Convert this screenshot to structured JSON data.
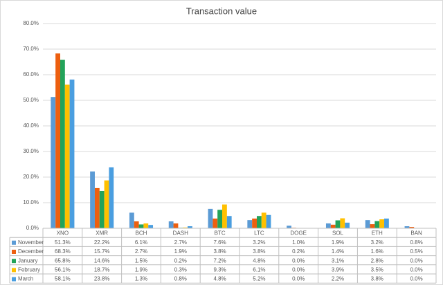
{
  "chart_data": {
    "type": "bar",
    "title": "Transaction value",
    "categories": [
      "XNO",
      "XMR",
      "BCH",
      "DASH",
      "BTC",
      "LTC",
      "DOGE",
      "SOL",
      "ETH",
      "BAN"
    ],
    "ylim": [
      0,
      80
    ],
    "yticks": [
      {
        "value": 0,
        "label": "0.0%"
      },
      {
        "value": 10,
        "label": "10.0%"
      },
      {
        "value": 20,
        "label": "20.0%"
      },
      {
        "value": 30,
        "label": "30.0%"
      },
      {
        "value": 40,
        "label": "40.0%"
      },
      {
        "value": 50,
        "label": "50.0%"
      },
      {
        "value": 60,
        "label": "60.0%"
      },
      {
        "value": 70,
        "label": "70.0%"
      },
      {
        "value": 80,
        "label": "80.0%"
      }
    ],
    "grid": true,
    "series": [
      {
        "name": "November",
        "color": "#5b9bd5",
        "values": [
          51.3,
          22.2,
          6.1,
          2.7,
          7.6,
          3.2,
          1.0,
          1.9,
          3.2,
          0.8
        ],
        "value_labels": [
          "51.3%",
          "22.2%",
          "6.1%",
          "2.7%",
          "7.6%",
          "3.2%",
          "1.0%",
          "1.9%",
          "3.2%",
          "0.8%"
        ]
      },
      {
        "name": "December",
        "color": "#ed5f0f",
        "values": [
          68.3,
          15.7,
          2.7,
          1.9,
          3.8,
          3.8,
          0.2,
          1.4,
          1.6,
          0.5
        ],
        "value_labels": [
          "68.3%",
          "15.7%",
          "2.7%",
          "1.9%",
          "3.8%",
          "3.8%",
          "0.2%",
          "1.4%",
          "1.6%",
          "0.5%"
        ]
      },
      {
        "name": "January",
        "color": "#23a35a",
        "values": [
          65.8,
          14.6,
          1.5,
          0.2,
          7.2,
          4.8,
          0.0,
          3.1,
          2.8,
          0.0
        ],
        "value_labels": [
          "65.8%",
          "14.6%",
          "1.5%",
          "0.2%",
          "7.2%",
          "4.8%",
          "0.0%",
          "3.1%",
          "2.8%",
          "0.0%"
        ]
      },
      {
        "name": "February",
        "color": "#ffc000",
        "values": [
          56.1,
          18.7,
          1.9,
          0.3,
          9.3,
          6.1,
          0.0,
          3.9,
          3.5,
          0.0
        ],
        "value_labels": [
          "56.1%",
          "18.7%",
          "1.9%",
          "0.3%",
          "9.3%",
          "6.1%",
          "0.0%",
          "3.9%",
          "3.5%",
          "0.0%"
        ]
      },
      {
        "name": "March",
        "color": "#4a9ee0",
        "values": [
          58.1,
          23.8,
          1.3,
          0.8,
          4.8,
          5.2,
          0.0,
          2.2,
          3.8,
          0.0
        ],
        "value_labels": [
          "58.1%",
          "23.8%",
          "1.3%",
          "0.8%",
          "4.8%",
          "5.2%",
          "0.0%",
          "2.2%",
          "3.8%",
          "0.0%"
        ]
      }
    ]
  }
}
